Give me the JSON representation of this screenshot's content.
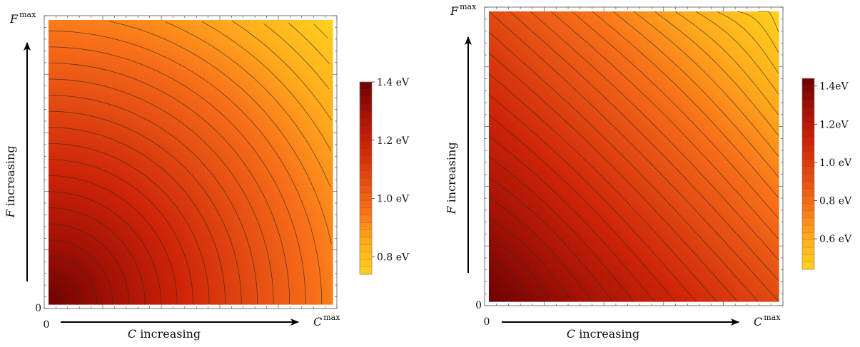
{
  "chart_data": [
    {
      "type": "heatmap",
      "subtype": "contour",
      "x_title": {
        "var": "C",
        "text": " increasing"
      },
      "y_title": {
        "var": "F",
        "text": " increasing"
      },
      "x_ticks": {
        "min_label": "0",
        "max_var": "C",
        "max_sup": "max"
      },
      "y_ticks": {
        "min_label": "0",
        "max_var": "F",
        "max_sup": "max"
      },
      "xlim": [
        0,
        1
      ],
      "ylim": [
        0,
        1
      ],
      "z_description": "energy decreasing with both C and F; curved contours",
      "z_range": [
        0.74,
        1.4
      ],
      "z_corners": {
        "origin": 1.4,
        "x_max": 1.05,
        "y_max": 1.05,
        "both_max": 0.74
      },
      "contour_count": 24,
      "colorbar": {
        "ticks": [
          "1.4 eV",
          "1.2 eV",
          "1.0 eV",
          "0.8 eV"
        ],
        "tick_values": [
          1.4,
          1.2,
          1.0,
          0.8
        ],
        "bands": 26
      },
      "colormap": [
        "#ffd21f",
        "#ffab1d",
        "#f8701a",
        "#e24a12",
        "#ce2409",
        "#a51206",
        "#6e0202"
      ],
      "contour_color": "#3a2a1a"
    },
    {
      "type": "heatmap",
      "subtype": "contour",
      "x_title": {
        "var": "C",
        "text": " increasing"
      },
      "y_title": {
        "var": "F",
        "text": " increasing"
      },
      "x_ticks": {
        "min_label": "0",
        "max_var": "C",
        "max_sup": "max"
      },
      "y_ticks": {
        "min_label": "0",
        "max_var": "F",
        "max_sup": "max"
      },
      "xlim": [
        0,
        1
      ],
      "ylim": [
        0,
        1
      ],
      "z_description": "energy decreasing roughly along the diagonal; nearly straight contours",
      "z_range": [
        0.44,
        1.44
      ],
      "z_corners": {
        "origin": 1.44,
        "x_max": 0.94,
        "y_max": 0.94,
        "both_max": 0.44
      },
      "contour_count": 27,
      "colorbar": {
        "ticks": [
          "1.4eV",
          "1.2eV",
          "1.0 eV",
          "0.8 eV",
          "0.6 eV"
        ],
        "tick_values": [
          1.4,
          1.2,
          1.0,
          0.8,
          0.6
        ],
        "bands": 26
      },
      "colormap": [
        "#ffd21f",
        "#ffab1d",
        "#f8701a",
        "#e24a12",
        "#ce2409",
        "#a51206",
        "#6e0202"
      ],
      "contour_color": "#3a2a1a"
    }
  ]
}
